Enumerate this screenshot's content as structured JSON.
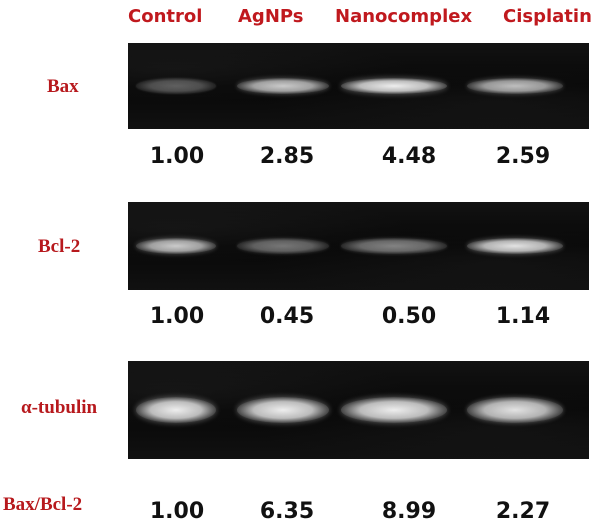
{
  "columns": [
    "Control",
    "AgNPs",
    "Nanocomplex",
    "Cisplatin"
  ],
  "rows": [
    {
      "label": "Bax",
      "intensities": [
        0.35,
        0.8,
        0.95,
        0.75
      ],
      "values": [
        "1.00",
        "2.85",
        "4.48",
        "2.59"
      ]
    },
    {
      "label": "Bcl-2",
      "intensities": [
        0.8,
        0.45,
        0.5,
        0.9
      ],
      "values": [
        "1.00",
        "0.45",
        "0.50",
        "1.14"
      ]
    },
    {
      "label": "α-tubulin",
      "intensities": [
        0.95,
        0.95,
        0.95,
        0.9
      ],
      "values": []
    }
  ],
  "ratio": {
    "label": "Bax/Bcl-2",
    "values": [
      "1.00",
      "6.35",
      "8.99",
      "2.27"
    ]
  },
  "colors": {
    "label_red": "#c0191e",
    "blot_bg": "#0b0b0b",
    "band": "#f2f2f2",
    "value_text": "#111111"
  }
}
